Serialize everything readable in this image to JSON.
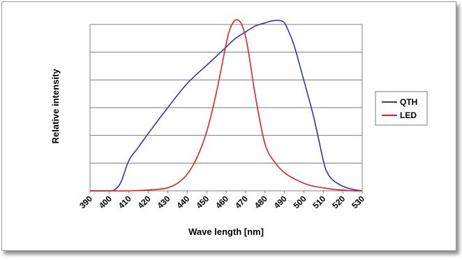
{
  "chart_data": {
    "type": "line",
    "xlabel": "Wave length [nm]",
    "ylabel": "Relative intensity",
    "xlim": [
      390,
      530
    ],
    "ylim": [
      0,
      1.1
    ],
    "x_ticks": [
      "390",
      "400",
      "410",
      "420",
      "430",
      "440",
      "450",
      "460",
      "470",
      "480",
      "490",
      "500",
      "510",
      "520",
      "530"
    ],
    "y_tick_labels": "none",
    "grid": "horizontal",
    "legend": "right",
    "series": [
      {
        "name": "QTH",
        "color": "#3333aa",
        "x": [
          390,
          400,
          403,
          406,
          410,
          415,
          420,
          430,
          440,
          450,
          455,
          460,
          465,
          470,
          475,
          480,
          484,
          488,
          490,
          492,
          495,
          500,
          505,
          510,
          512,
          515,
          520,
          525,
          530
        ],
        "y": [
          0,
          0,
          0.01,
          0.06,
          0.2,
          0.29,
          0.38,
          0.55,
          0.71,
          0.83,
          0.89,
          0.95,
          1.01,
          1.05,
          1.09,
          1.11,
          1.125,
          1.125,
          1.11,
          1.06,
          0.96,
          0.73,
          0.49,
          0.2,
          0.12,
          0.07,
          0.03,
          0.01,
          0
        ]
      },
      {
        "name": "LED",
        "color": "#dd2222",
        "x": [
          390,
          400,
          410,
          420,
          425,
          430,
          435,
          440,
          445,
          450,
          455,
          460,
          462,
          464,
          466,
          468,
          470,
          472,
          475,
          480,
          485,
          490,
          495,
          500,
          505,
          510,
          515,
          520,
          525,
          530
        ],
        "y": [
          0,
          0,
          0,
          0.005,
          0.01,
          0.02,
          0.05,
          0.11,
          0.22,
          0.39,
          0.65,
          0.97,
          1.07,
          1.12,
          1.13,
          1.1,
          1.02,
          0.88,
          0.63,
          0.31,
          0.19,
          0.12,
          0.08,
          0.05,
          0.03,
          0.02,
          0.01,
          0.005,
          0,
          0
        ]
      }
    ]
  }
}
